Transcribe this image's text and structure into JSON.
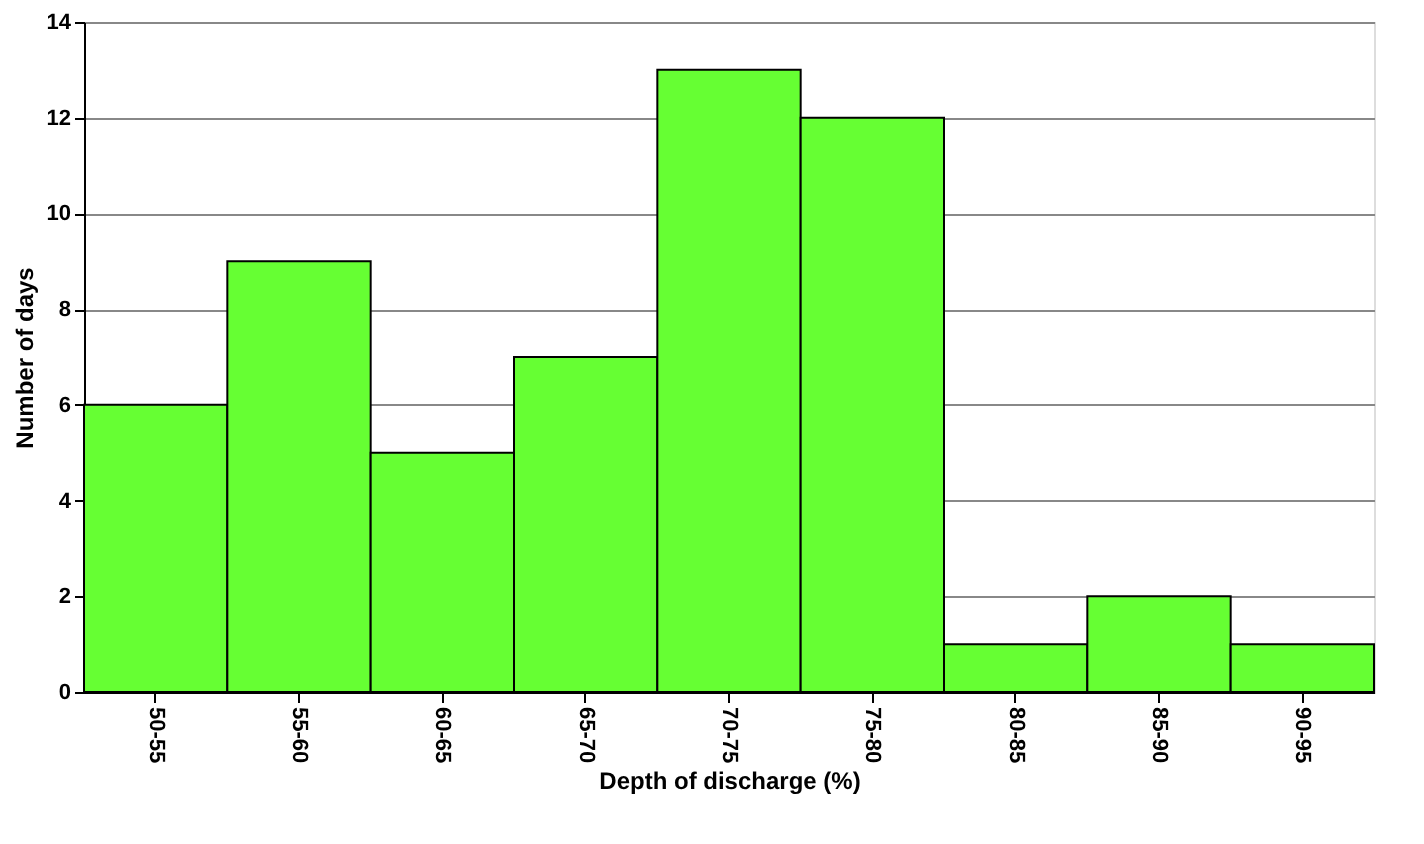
{
  "chart_data": {
    "type": "bar",
    "xlabel": "Depth of discharge  (%)",
    "ylabel": "Number of days",
    "categories": [
      "50-55",
      "55-60",
      "60-65",
      "65-70",
      "70-75",
      "75-80",
      "80-85",
      "85-90",
      "90-95"
    ],
    "values": [
      6,
      9,
      5,
      7,
      13,
      12,
      1,
      2,
      1
    ],
    "color": "#66ff33",
    "ylim": [
      0,
      14
    ],
    "yticks": [
      0,
      2,
      4,
      6,
      8,
      10,
      12,
      14
    ],
    "grid": "y"
  }
}
